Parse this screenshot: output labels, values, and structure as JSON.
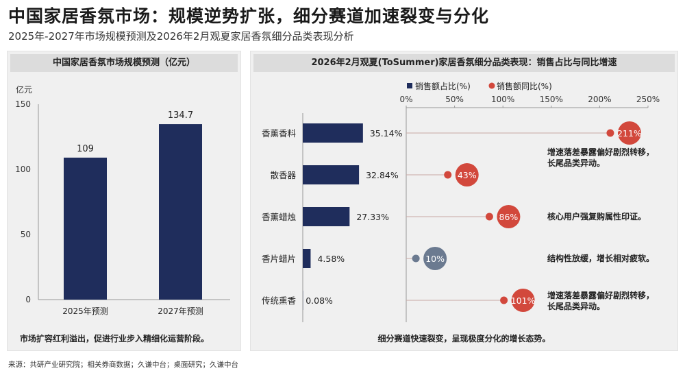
{
  "title": "中国家居香氛市场：规模逆势扩张，细分赛道加速裂变与分化",
  "subtitle": "2025年-2027年市场规模预测及2026年2月观夏家居香氛细分品类表现分析",
  "source": "来源：共研产业研究院；相关券商数据；久谦中台；桌面研究；久谦中台",
  "colors": {
    "navy": "#1f2d5c",
    "red": "#d2483c",
    "gray_blue": "#6b7a90"
  },
  "chart_data": [
    {
      "type": "bar",
      "title": "中国家居香氛市场规模预测（亿元）",
      "ylabel": "亿元",
      "categories": [
        "2025年预测",
        "2027年预测"
      ],
      "values": [
        109,
        134.7
      ],
      "value_labels": [
        "109",
        "134.7"
      ],
      "ylim": [
        0,
        150
      ],
      "yticks": [
        0,
        50,
        100,
        150
      ],
      "grid": false,
      "note": "市场扩容红利溢出，促进行业步入精细化运营阶段。"
    },
    {
      "type": "bar+dot",
      "title": "2026年2月观夏(ToSummer)家居香氛细分品类表现：销售占比与同比增速",
      "legend": [
        "销售额占比(%)",
        "销售额同比(%)"
      ],
      "legend_position": "top",
      "categories": [
        "香薰香料",
        "散香器",
        "香薰蜡烛",
        "香片蜡片",
        "传统熏香"
      ],
      "series": [
        {
          "name": "销售额占比(%)",
          "values": [
            35.14,
            32.84,
            27.33,
            4.58,
            0.08
          ],
          "labels": [
            "35.14%",
            "32.84%",
            "27.33%",
            "4.58%",
            "0.08%"
          ]
        },
        {
          "name": "销售额同比(%)",
          "values": [
            211,
            43,
            86,
            10,
            101
          ],
          "labels": [
            "211%",
            "43%",
            "86%",
            "10%",
            "101%"
          ]
        }
      ],
      "xlim_growth": [
        0,
        250
      ],
      "xticks": [
        "0%",
        "50%",
        "100%",
        "150%",
        "200%",
        "250%"
      ],
      "annotations": [
        "增速落差暴露偏好剧烈转移，\n长尾品类异动。",
        "",
        "核心用户强复购属性印证。",
        "结构性放缓，增长相对疲软。",
        "增速落差暴露偏好剧烈转移，\n长尾品类异动。"
      ],
      "note": "细分赛道快速裂变，呈现极度分化的增长态势。"
    }
  ]
}
